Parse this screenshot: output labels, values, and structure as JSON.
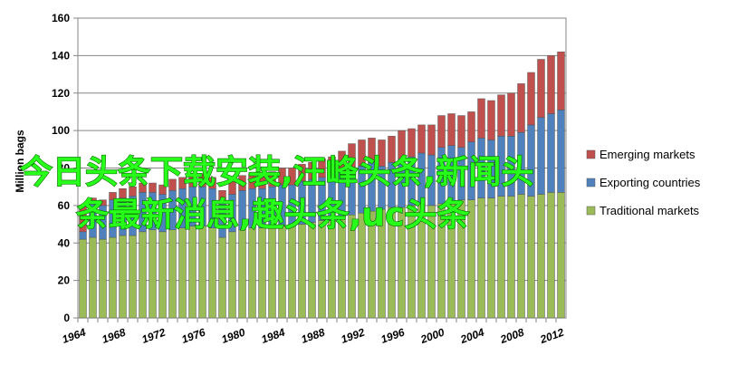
{
  "chart_data": {
    "type": "bar",
    "stacked": true,
    "ylabel": "Million bags",
    "ylim": [
      0,
      160
    ],
    "yticks": [
      0,
      20,
      40,
      60,
      80,
      100,
      120,
      140,
      160
    ],
    "x_tick_labels": [
      "1964",
      "1968",
      "1972",
      "1976",
      "1980",
      "1984",
      "1988",
      "1992",
      "1996",
      "2000",
      "2004",
      "2008",
      "2012"
    ],
    "grid": "horizontal",
    "legend_position": "right",
    "categories": [
      1964,
      1965,
      1966,
      1967,
      1968,
      1969,
      1970,
      1971,
      1972,
      1973,
      1974,
      1975,
      1976,
      1977,
      1978,
      1979,
      1980,
      1981,
      1982,
      1983,
      1984,
      1985,
      1986,
      1987,
      1988,
      1989,
      1990,
      1991,
      1992,
      1993,
      1994,
      1995,
      1996,
      1997,
      1998,
      1999,
      2000,
      2001,
      2002,
      2003,
      2004,
      2005,
      2006,
      2007,
      2008,
      2009,
      2010,
      2011,
      2012
    ],
    "series": [
      {
        "name": "Traditional markets",
        "color": "#9bbb59",
        "values": [
          42,
          43,
          42,
          43,
          44,
          44,
          46,
          47,
          46,
          47,
          48,
          49,
          49,
          48,
          43,
          46,
          47,
          48,
          48,
          49,
          49,
          49,
          50,
          51,
          52,
          52,
          54,
          55,
          56,
          57,
          58,
          59,
          59,
          60,
          61,
          60,
          61,
          62,
          63,
          63,
          64,
          64,
          65,
          65,
          66,
          65,
          66,
          67,
          67
        ]
      },
      {
        "name": "Exporting countries",
        "color": "#4f81bd",
        "values": [
          4,
          18,
          18,
          20,
          20,
          21,
          21,
          20,
          20,
          21,
          21,
          21,
          21,
          21,
          19,
          20,
          21,
          21,
          21,
          21,
          22,
          22,
          23,
          23,
          23,
          23,
          24,
          25,
          25,
          26,
          23,
          24,
          26,
          26,
          27,
          27,
          30,
          30,
          28,
          31,
          32,
          31,
          32,
          32,
          33,
          38,
          41,
          42,
          44
        ]
      },
      {
        "name": "Emerging markets",
        "color": "#c0504d",
        "values": [
          14,
          3,
          3,
          4,
          5,
          5,
          5,
          5,
          5,
          6,
          6,
          6,
          7,
          6,
          6,
          7,
          8,
          8,
          8,
          8,
          9,
          9,
          9,
          9,
          10,
          11,
          11,
          13,
          14,
          13,
          14,
          14,
          15,
          15,
          15,
          16,
          17,
          17,
          17,
          16,
          21,
          21,
          22,
          23,
          26,
          28,
          31,
          31,
          31
        ]
      }
    ]
  },
  "overlay": {
    "line1": "今日头条下载安装,汪峰头条,新闻头",
    "line2": "条最新消息,趣头条,uc头条"
  }
}
